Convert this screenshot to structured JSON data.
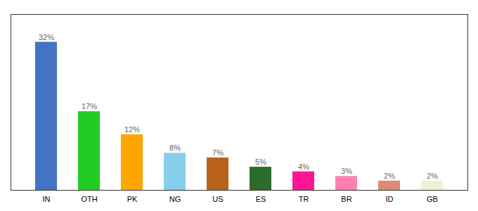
{
  "chart_data": {
    "type": "bar",
    "categories": [
      "IN",
      "OTH",
      "PK",
      "NG",
      "US",
      "ES",
      "TR",
      "BR",
      "ID",
      "GB"
    ],
    "values": [
      32,
      17,
      12,
      8,
      7,
      5,
      4,
      3,
      2,
      2
    ],
    "value_labels": [
      "32%",
      "17%",
      "12%",
      "8%",
      "7%",
      "5%",
      "4%",
      "3%",
      "2%",
      "2%"
    ],
    "colors": [
      "#4472c4",
      "#22cc22",
      "#ffa500",
      "#87ceeb",
      "#b8621a",
      "#2d6a2d",
      "#ff1493",
      "#ff80b0",
      "#e08878",
      "#f0f0d8"
    ],
    "ylim": [
      0,
      38
    ],
    "grid": false,
    "data_labels": true,
    "tick_labels": "x"
  }
}
